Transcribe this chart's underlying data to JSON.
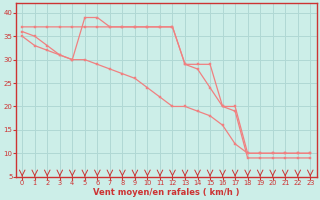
{
  "xlabel": "Vent moyen/en rafales ( km/h )",
  "bg_color": "#cceee8",
  "line_color": "#f08080",
  "grid_color": "#b0d8d4",
  "axis_color": "#cc3333",
  "tick_color": "#cc3333",
  "xlim": [
    -0.5,
    23.5
  ],
  "ylim": [
    5,
    42
  ],
  "yticks": [
    5,
    10,
    15,
    20,
    25,
    30,
    35,
    40
  ],
  "xticks": [
    0,
    1,
    2,
    3,
    4,
    5,
    6,
    7,
    8,
    9,
    10,
    11,
    12,
    13,
    14,
    15,
    16,
    17,
    18,
    19,
    20,
    21,
    22,
    23
  ],
  "line1_x": [
    0,
    1,
    2,
    3,
    4,
    5,
    6,
    7,
    8,
    9,
    10,
    11,
    12,
    13,
    14,
    15,
    16,
    17,
    18,
    19,
    20,
    21,
    22,
    23
  ],
  "line1_y": [
    37,
    37,
    37,
    37,
    37,
    37,
    37,
    37,
    37,
    37,
    37,
    37,
    37,
    29,
    29,
    29,
    20,
    20,
    10,
    10,
    10,
    10,
    10,
    10
  ],
  "line2_x": [
    0,
    1,
    2,
    3,
    4,
    5,
    6,
    7,
    8,
    9,
    10,
    11,
    12,
    13,
    14,
    15,
    16,
    17,
    18,
    19,
    20,
    21,
    22,
    23
  ],
  "line2_y": [
    36,
    35,
    33,
    31,
    30,
    39,
    39,
    37,
    37,
    37,
    37,
    37,
    37,
    29,
    28,
    24,
    20,
    19,
    9,
    9,
    9,
    9,
    9,
    9
  ],
  "line3_x": [
    0,
    1,
    2,
    3,
    4,
    5,
    6,
    7,
    8,
    9,
    10,
    11,
    12,
    13,
    14,
    15,
    16,
    17,
    18,
    19,
    20,
    21,
    22,
    23
  ],
  "line3_y": [
    35,
    33,
    32,
    31,
    30,
    30,
    29,
    28,
    27,
    26,
    24,
    22,
    20,
    20,
    19,
    18,
    16,
    12,
    10,
    10,
    10,
    10,
    10,
    10
  ]
}
